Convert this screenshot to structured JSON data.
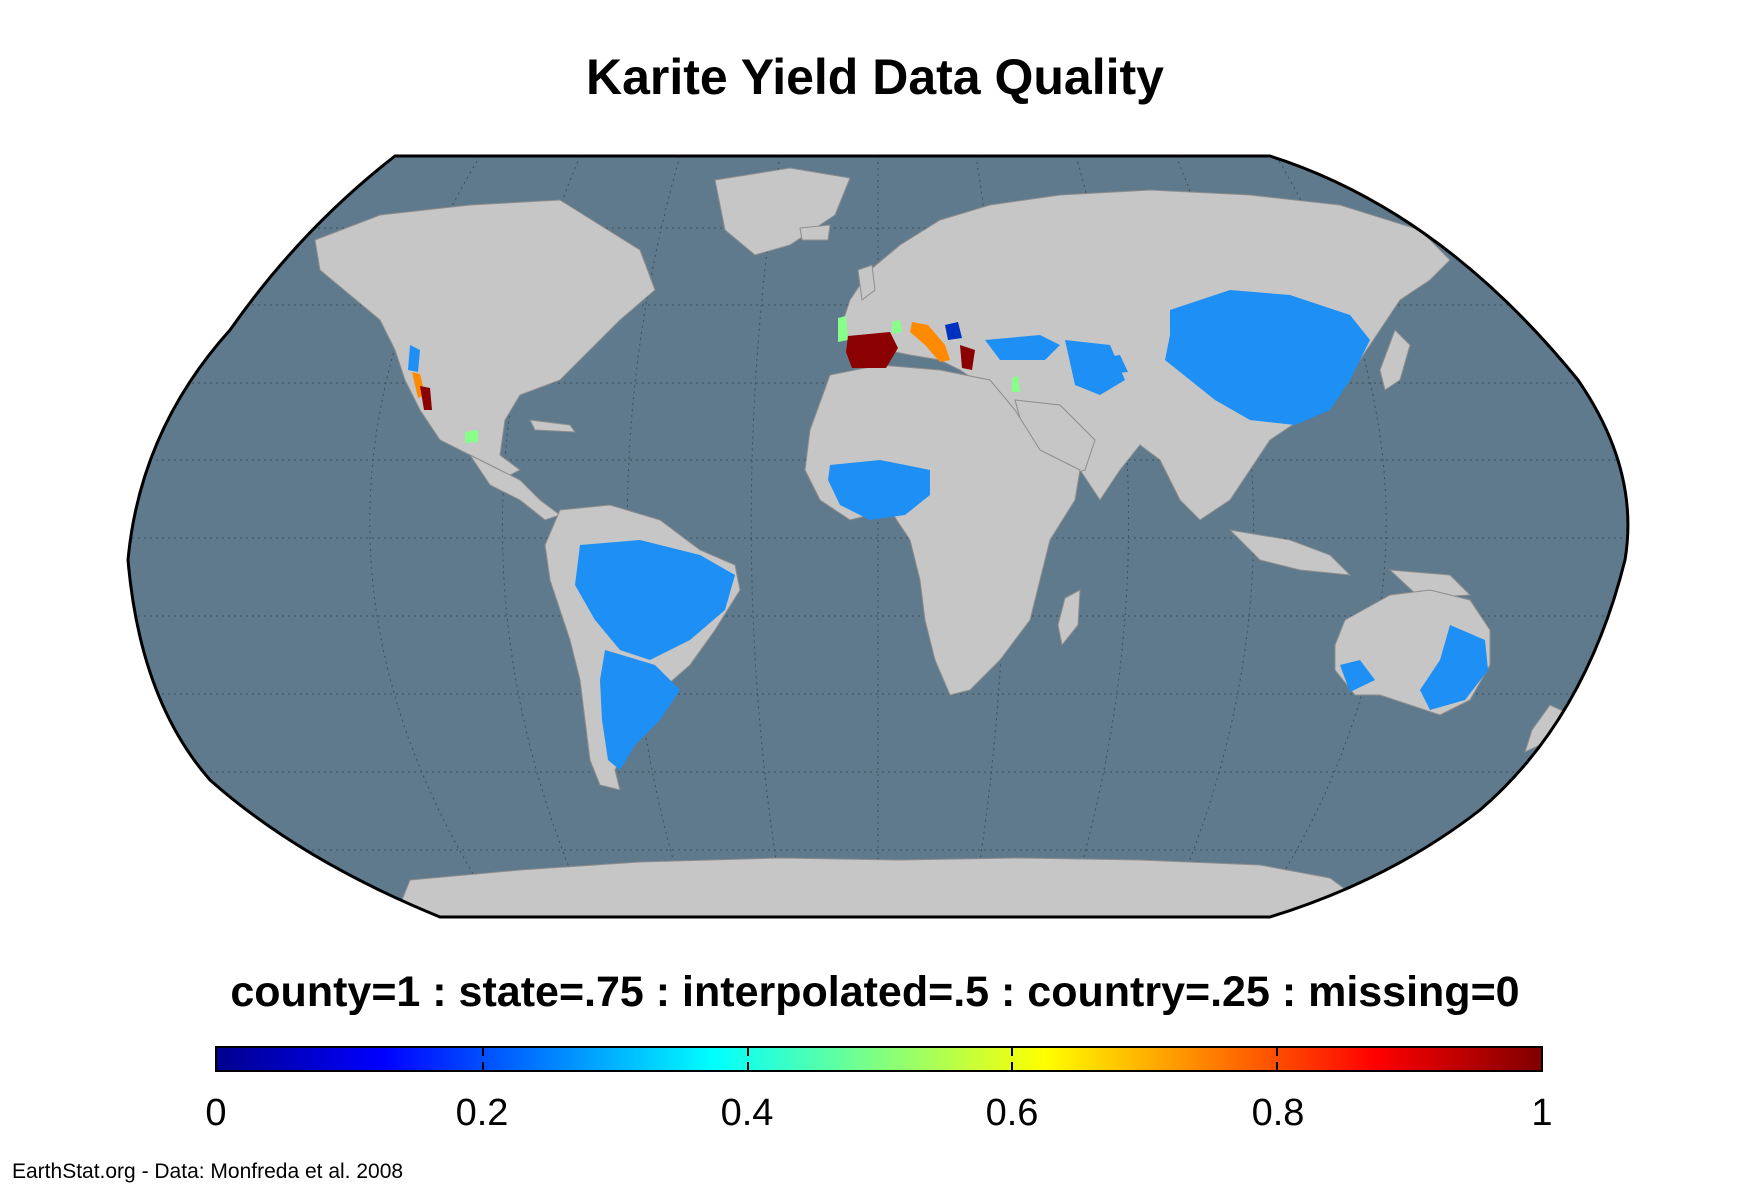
{
  "title": "Karite Yield Data Quality",
  "legend": {
    "title": "county=1 : state=.75 : interpolated=.5 : country=.25 : missing=0",
    "ticks": [
      "0",
      "0.2",
      "0.4",
      "0.6",
      "0.8",
      "1"
    ],
    "range": [
      0,
      1
    ],
    "colormap": "jet",
    "stops": [
      "#00008f",
      "#0000ff",
      "#0080ff",
      "#00ffff",
      "#80ff80",
      "#ffff00",
      "#ff8000",
      "#ff0000",
      "#800000"
    ]
  },
  "credit": "EarthStat.org - Data: Monfreda et al. 2008",
  "colors": {
    "ocean": "#5e7a8c",
    "land": "#c6c6c6",
    "border": "#8d8d8d",
    "graticule": "#3e4e58",
    "value_025": "#1e8ff5",
    "value_05": "#88ff88",
    "value_075": "#ff8a00",
    "value_1": "#8b0000"
  },
  "map": {
    "projection": "Robinson",
    "graticule": true
  }
}
